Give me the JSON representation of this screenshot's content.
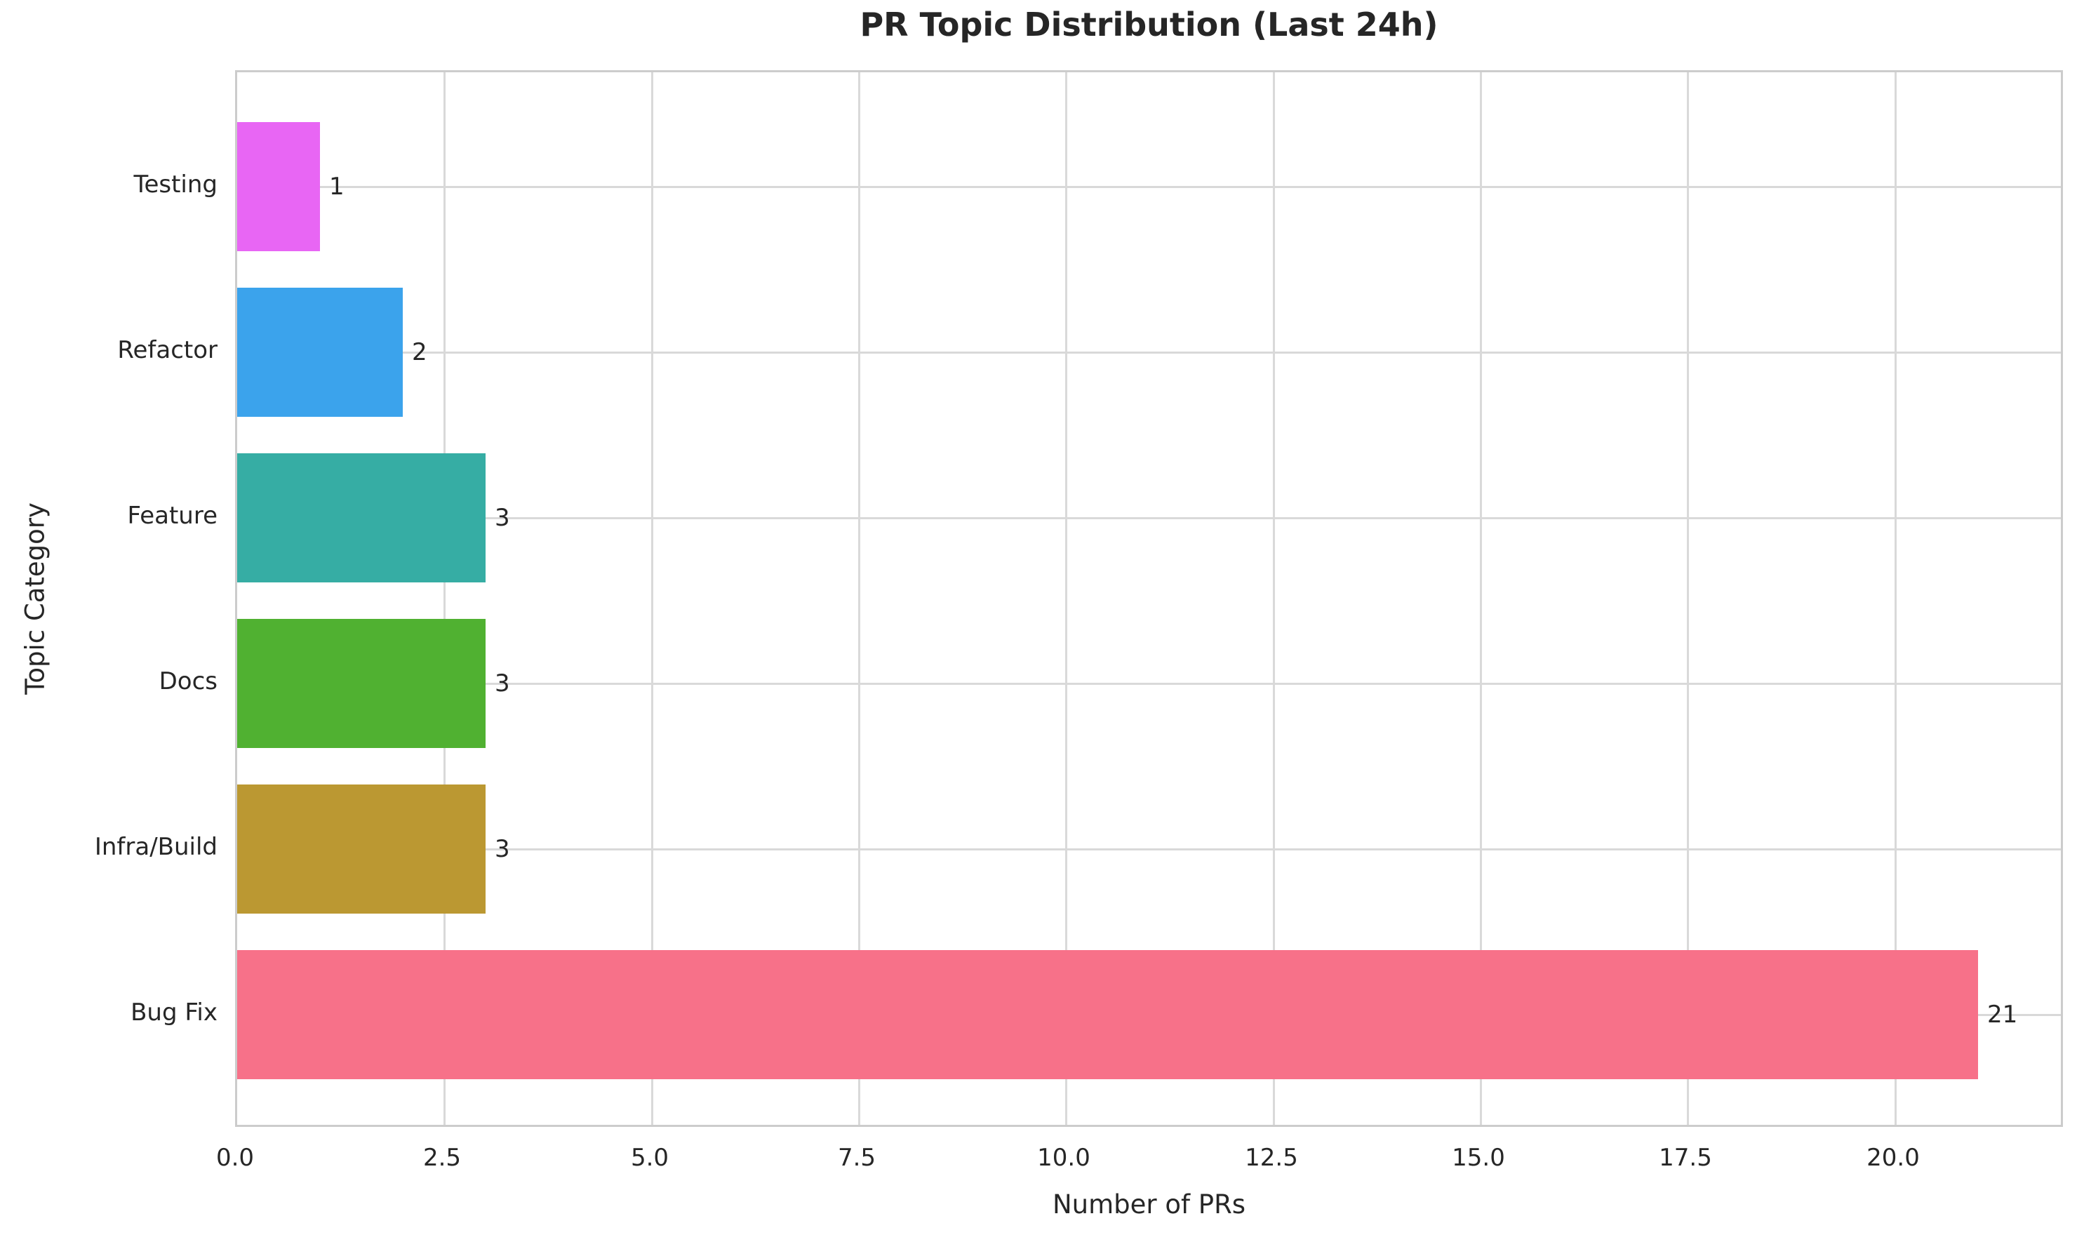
{
  "chart_data": {
    "type": "bar",
    "orientation": "horizontal",
    "title": "PR Topic Distribution (Last 24h)",
    "xlabel": "Number of PRs",
    "ylabel": "Topic Category",
    "categories": [
      "Testing",
      "Refactor",
      "Feature",
      "Docs",
      "Infra/Build",
      "Bug Fix"
    ],
    "values": [
      1,
      2,
      3,
      3,
      3,
      21
    ],
    "bar_labels": [
      "1",
      "2",
      "3",
      "3",
      "3",
      "21"
    ],
    "bar_colors": [
      "#e866f4",
      "#3ba3ec",
      "#36ada4",
      "#50b131",
      "#bb9832",
      "#f77189"
    ],
    "x_tick_values": [
      0,
      2.5,
      5,
      7.5,
      10,
      12.5,
      15,
      17.5,
      20
    ],
    "x_tick_labels": [
      "0.0",
      "2.5",
      "5.0",
      "7.5",
      "10.0",
      "12.5",
      "15.0",
      "17.5",
      "20.0"
    ],
    "xlim": [
      0,
      22.05
    ],
    "grid": true,
    "legend": false,
    "background": "#ffffff",
    "grid_color": "#d9d9d9",
    "spine_color": "#cccccc",
    "text_color": "#262626"
  }
}
